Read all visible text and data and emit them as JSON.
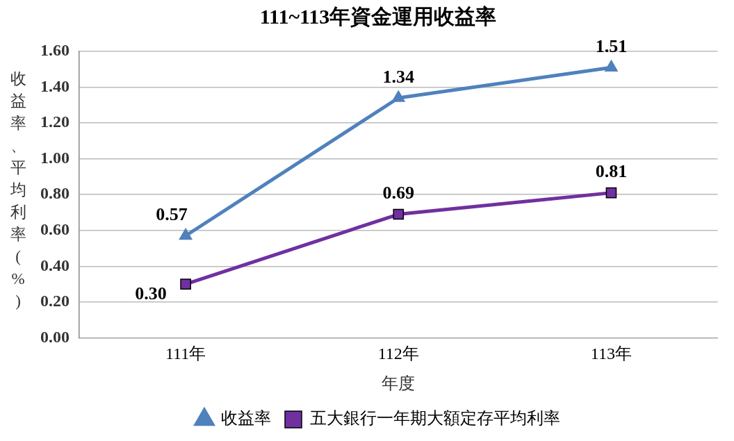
{
  "chart_data": {
    "type": "line",
    "title": "111~113年資金運用收益率",
    "xlabel": "年度",
    "ylabel": "收益率、平均利率(%)",
    "categories": [
      "111年",
      "112年",
      "113年"
    ],
    "series": [
      {
        "name": "收益率",
        "color": "#4f81bd",
        "marker": "triangle",
        "values": [
          0.57,
          1.34,
          1.51
        ],
        "value_labels": [
          "0.57",
          "1.34",
          "1.51"
        ]
      },
      {
        "name": "五大銀行一年期大額定存平均利率",
        "color": "#7030a0",
        "marker": "square",
        "values": [
          0.3,
          0.69,
          0.81
        ],
        "value_labels": [
          "0.30",
          "0.69",
          "0.81"
        ]
      }
    ],
    "ylim": [
      0,
      1.6
    ],
    "yticks": [
      {
        "value": 0,
        "label": "0.00"
      },
      {
        "value": 0.2,
        "label": "0.20"
      },
      {
        "value": 0.4,
        "label": "0.40"
      },
      {
        "value": 0.6,
        "label": "0.60"
      },
      {
        "value": 0.8,
        "label": "0.80"
      },
      {
        "value": 1,
        "label": "1.00"
      },
      {
        "value": 1.2,
        "label": "1.20"
      },
      {
        "value": 1.4,
        "label": "1.40"
      },
      {
        "value": 1.6,
        "label": "1.60"
      }
    ],
    "grid": "y",
    "legend": "bottom",
    "line_style": "solid"
  }
}
